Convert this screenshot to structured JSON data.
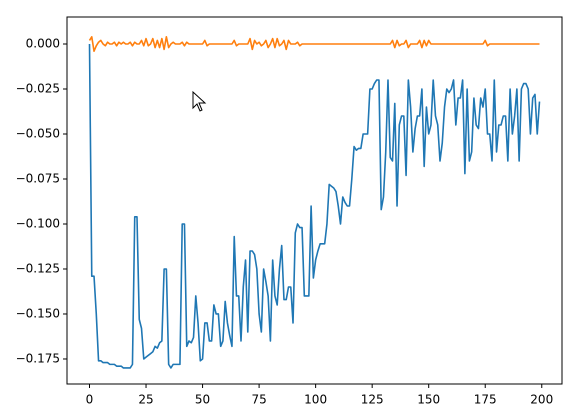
{
  "chart_data": {
    "type": "line",
    "x": [
      0,
      1,
      2,
      3,
      4,
      5,
      6,
      7,
      8,
      9,
      10,
      11,
      12,
      13,
      14,
      15,
      16,
      17,
      18,
      19,
      20,
      21,
      22,
      23,
      24,
      25,
      26,
      27,
      28,
      29,
      30,
      31,
      32,
      33,
      34,
      35,
      36,
      37,
      38,
      39,
      40,
      41,
      42,
      43,
      44,
      45,
      46,
      47,
      48,
      49,
      50,
      51,
      52,
      53,
      54,
      55,
      56,
      57,
      58,
      59,
      60,
      61,
      62,
      63,
      64,
      65,
      66,
      67,
      68,
      69,
      70,
      71,
      72,
      73,
      74,
      75,
      76,
      77,
      78,
      79,
      80,
      81,
      82,
      83,
      84,
      85,
      86,
      87,
      88,
      89,
      90,
      91,
      92,
      93,
      94,
      95,
      96,
      97,
      98,
      99,
      100,
      101,
      102,
      103,
      104,
      105,
      106,
      107,
      108,
      109,
      110,
      111,
      112,
      113,
      114,
      115,
      116,
      117,
      118,
      119,
      120,
      121,
      122,
      123,
      124,
      125,
      126,
      127,
      128,
      129,
      130,
      131,
      132,
      133,
      134,
      135,
      136,
      137,
      138,
      139,
      140,
      141,
      142,
      143,
      144,
      145,
      146,
      147,
      148,
      149,
      150,
      151,
      152,
      153,
      154,
      155,
      156,
      157,
      158,
      159,
      160,
      161,
      162,
      163,
      164,
      165,
      166,
      167,
      168,
      169,
      170,
      171,
      172,
      173,
      174,
      175,
      176,
      177,
      178,
      179,
      180,
      181,
      182,
      183,
      184,
      185,
      186,
      187,
      188,
      189,
      190,
      191,
      192,
      193,
      194,
      195,
      196,
      197,
      198,
      199
    ],
    "series": [
      {
        "color": "#1f77b4",
        "values": [
          0,
          -0.129,
          -0.129,
          -0.15,
          -0.176,
          -0.176,
          -0.177,
          -0.177,
          -0.177,
          -0.178,
          -0.178,
          -0.178,
          -0.179,
          -0.179,
          -0.179,
          -0.18,
          -0.18,
          -0.18,
          -0.18,
          -0.178,
          -0.096,
          -0.096,
          -0.153,
          -0.158,
          -0.175,
          -0.174,
          -0.173,
          -0.172,
          -0.171,
          -0.168,
          -0.169,
          -0.166,
          -0.165,
          -0.125,
          -0.125,
          -0.178,
          -0.18,
          -0.178,
          -0.178,
          -0.178,
          -0.178,
          -0.1,
          -0.1,
          -0.168,
          -0.165,
          -0.166,
          -0.163,
          -0.14,
          -0.155,
          -0.176,
          -0.175,
          -0.155,
          -0.155,
          -0.165,
          -0.165,
          -0.145,
          -0.15,
          -0.15,
          -0.168,
          -0.165,
          -0.143,
          -0.155,
          -0.162,
          -0.168,
          -0.107,
          -0.14,
          -0.14,
          -0.165,
          -0.135,
          -0.12,
          -0.16,
          -0.115,
          -0.115,
          -0.117,
          -0.125,
          -0.15,
          -0.16,
          -0.125,
          -0.132,
          -0.14,
          -0.165,
          -0.12,
          -0.14,
          -0.145,
          -0.125,
          -0.112,
          -0.142,
          -0.142,
          -0.135,
          -0.135,
          -0.155,
          -0.105,
          -0.1,
          -0.102,
          -0.102,
          -0.14,
          -0.14,
          -0.14,
          -0.09,
          -0.13,
          -0.12,
          -0.115,
          -0.111,
          -0.111,
          -0.111,
          -0.1,
          -0.078,
          -0.079,
          -0.08,
          -0.082,
          -0.09,
          -0.1,
          -0.085,
          -0.088,
          -0.09,
          -0.09,
          -0.075,
          -0.057,
          -0.059,
          -0.058,
          -0.058,
          -0.05,
          -0.05,
          -0.05,
          -0.025,
          -0.025,
          -0.022,
          -0.02,
          -0.02,
          -0.092,
          -0.085,
          -0.06,
          -0.02,
          -0.063,
          -0.065,
          -0.033,
          -0.09,
          -0.045,
          -0.04,
          -0.04,
          -0.073,
          -0.02,
          -0.035,
          -0.06,
          -0.047,
          -0.04,
          -0.04,
          -0.025,
          -0.068,
          -0.035,
          -0.05,
          -0.045,
          -0.02,
          -0.04,
          -0.045,
          -0.065,
          -0.055,
          -0.035,
          -0.025,
          -0.027,
          -0.025,
          -0.02,
          -0.045,
          -0.03,
          -0.03,
          -0.02,
          -0.072,
          -0.025,
          -0.065,
          -0.06,
          -0.03,
          -0.045,
          -0.047,
          -0.03,
          -0.035,
          -0.025,
          -0.05,
          -0.05,
          -0.065,
          -0.02,
          -0.06,
          -0.045,
          -0.045,
          -0.04,
          -0.04,
          -0.065,
          -0.025,
          -0.05,
          -0.04,
          -0.025,
          -0.065,
          -0.025,
          -0.022,
          -0.022,
          -0.025,
          -0.05,
          -0.03,
          -0.028,
          -0.05,
          -0.032
        ]
      },
      {
        "color": "#ff7f0e",
        "values": [
          0.002,
          0.004,
          -0.004,
          -0.001,
          0.001,
          0.002,
          0,
          -0.001,
          0.001,
          0,
          0,
          0.001,
          -0.001,
          0.001,
          0,
          0.001,
          0,
          0,
          0.001,
          -0.001,
          0.001,
          0,
          0,
          0.002,
          -0.001,
          0.003,
          -0.001,
          0,
          0.003,
          -0.002,
          0.002,
          -0.002,
          0.003,
          -0.003,
          0.004,
          -0.002,
          0,
          0.001,
          0,
          0,
          0,
          0.001,
          -0.001,
          0.001,
          0,
          0,
          0,
          0,
          0,
          0,
          0,
          0.002,
          -0.001,
          0,
          0,
          0,
          0,
          0,
          0,
          0,
          0,
          0,
          0,
          0,
          0.002,
          -0.001,
          0,
          0,
          0,
          0,
          0,
          0.003,
          -0.003,
          0.002,
          0,
          0.001,
          -0.001,
          0,
          0.002,
          -0.002,
          0,
          0.003,
          -0.002,
          0.003,
          -0.001,
          0,
          0.002,
          -0.003,
          0.002,
          0,
          0,
          0,
          0.001,
          -0.001,
          0,
          0,
          0,
          0,
          0,
          0,
          0,
          0,
          0,
          0,
          0,
          0,
          0,
          0,
          0,
          0,
          0,
          0,
          0,
          0,
          0,
          0,
          0,
          0,
          0,
          0,
          0,
          0,
          0,
          0,
          0,
          0,
          0,
          0,
          0,
          0,
          0,
          0,
          0,
          0,
          0.002,
          -0.002,
          0.002,
          -0.001,
          0,
          0,
          0.002,
          -0.002,
          0,
          0,
          0,
          0,
          0.002,
          -0.002,
          0.002,
          -0.001,
          0.002,
          0,
          0,
          0,
          0,
          0,
          0,
          0,
          0,
          0,
          0,
          0,
          0,
          0,
          0,
          0,
          0,
          0,
          0,
          0,
          0,
          0,
          0,
          0,
          0,
          0.002,
          -0.001,
          0,
          0,
          0,
          0,
          0,
          0,
          0,
          0,
          0,
          0,
          0,
          0,
          0,
          0,
          0,
          0,
          0,
          0,
          0,
          0,
          0,
          0,
          0
        ]
      }
    ],
    "xlim": [
      -9.95,
      208.95
    ],
    "xticks": [
      0,
      25,
      50,
      75,
      100,
      125,
      150,
      175,
      200
    ],
    "ylim": [
      -0.1889,
      0.015
    ],
    "yticks": [
      {
        "value": 0,
        "label": "0.000"
      },
      {
        "value": -0.025,
        "label": "−0.025"
      },
      {
        "value": -0.05,
        "label": "−0.050"
      },
      {
        "value": -0.075,
        "label": "−0.075"
      },
      {
        "value": -0.1,
        "label": "−0.100"
      },
      {
        "value": -0.125,
        "label": "−0.125"
      },
      {
        "value": -0.15,
        "label": "−0.150"
      },
      {
        "value": -0.175,
        "label": "−0.175"
      }
    ]
  }
}
